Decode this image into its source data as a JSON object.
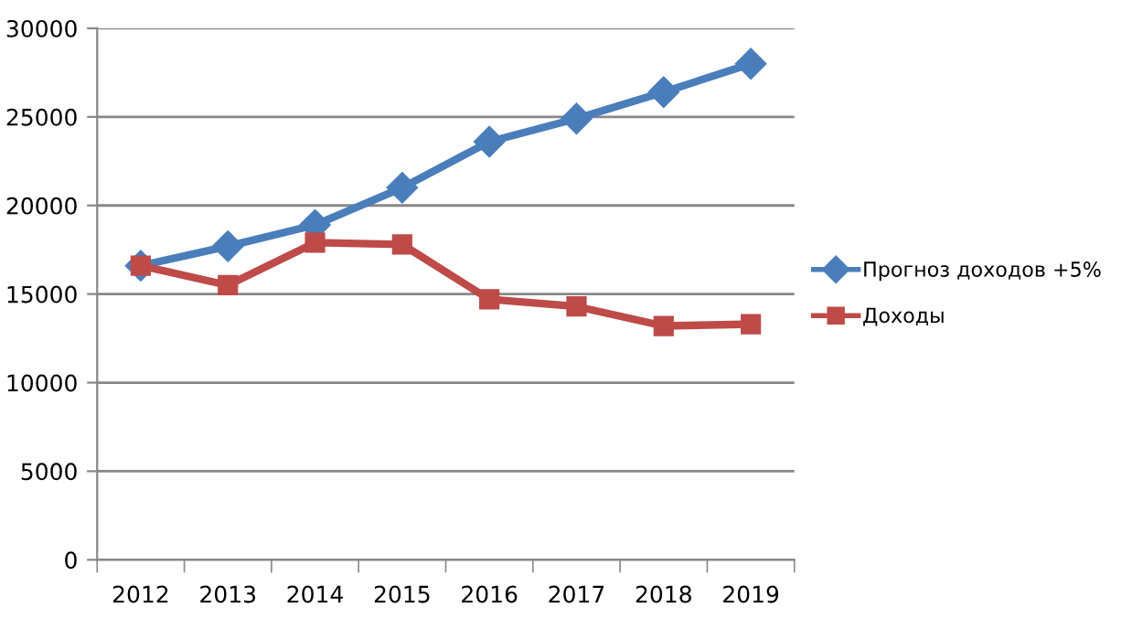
{
  "chart_data": {
    "type": "line",
    "categories": [
      "2012",
      "2013",
      "2014",
      "2015",
      "2016",
      "2017",
      "2018",
      "2019"
    ],
    "series": [
      {
        "name": "Прогноз доходов +5%",
        "color": "#4a7ebb",
        "marker": "diamond",
        "values": [
          16600,
          17700,
          18900,
          21000,
          23600,
          24900,
          26400,
          28000
        ]
      },
      {
        "name": "Доходы",
        "color": "#be4b48",
        "marker": "square",
        "values": [
          16600,
          15500,
          17900,
          17800,
          14700,
          14300,
          13200,
          13300
        ]
      }
    ],
    "ylim": [
      0,
      30000
    ],
    "yticks": [
      0,
      5000,
      10000,
      15000,
      20000,
      25000,
      30000
    ],
    "grid": "y",
    "legend": "right"
  }
}
